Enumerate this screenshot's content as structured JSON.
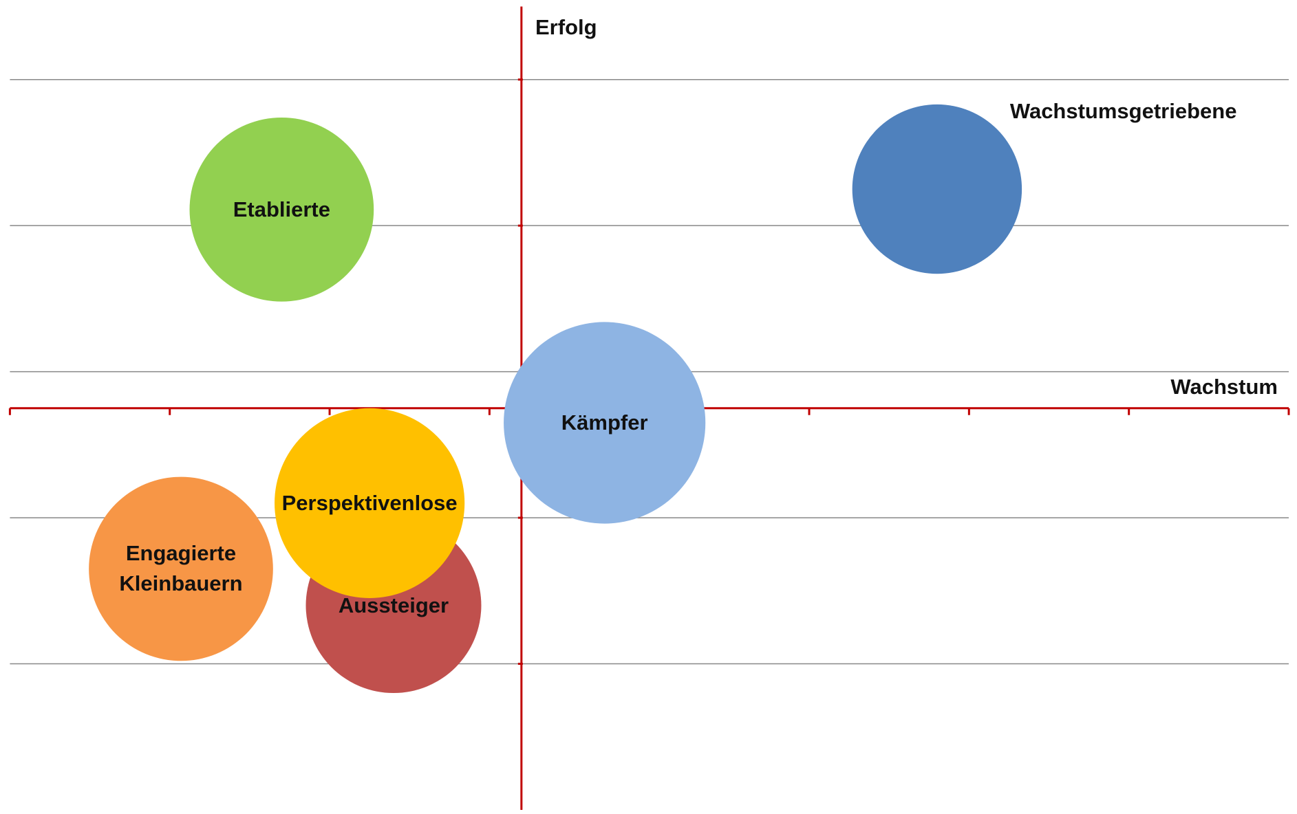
{
  "chart_data": {
    "type": "bubble",
    "x_label": "Wachstum",
    "y_label": "Erfolg",
    "xlim": [
      0,
      8
    ],
    "xticks": [
      0,
      1,
      2,
      3,
      4,
      5,
      6,
      7,
      8
    ],
    "ylim": [
      -1,
      4.5
    ],
    "yticks": [
      0,
      1,
      2,
      3,
      4
    ],
    "x_axis_at": 1.75,
    "y_axis_at": 3.2,
    "grid": true,
    "axis_color": "#c00000",
    "grid_color": "#888888",
    "series": [
      {
        "name": "Etablierte",
        "color": "#92d050",
        "x": 1.7,
        "y": 3.11,
        "size": 0.63
      },
      {
        "name": "Wachstumsgetriebene",
        "color": "#4f81bd",
        "x": 5.8,
        "y": 3.25,
        "size": 0.58,
        "label_position": "outside"
      },
      {
        "name": "Kämpfer",
        "color": "#8eb4e3",
        "x": 3.72,
        "y": 1.65,
        "size": 0.69
      },
      {
        "name": "Engagierte Kleinbauern",
        "color": "#f79646",
        "x": 1.07,
        "y": 0.65,
        "size": 0.63
      },
      {
        "name": "Aussteiger",
        "color": "#c0504d",
        "x": 2.4,
        "y": 0.4,
        "size": 0.6
      },
      {
        "name": "Perspektivenlose",
        "color": "#ffc000",
        "x": 2.25,
        "y": 1.1,
        "size": 0.65
      }
    ]
  }
}
